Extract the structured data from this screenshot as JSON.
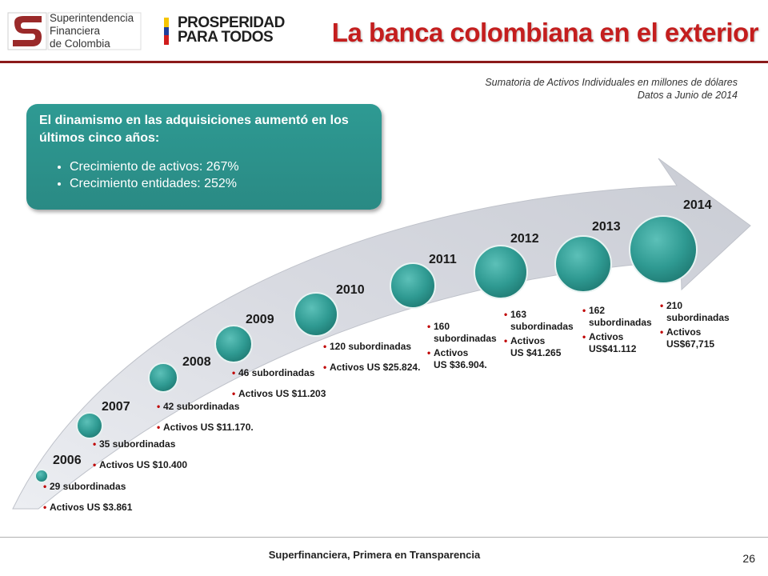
{
  "header": {
    "org_name_lines": [
      "Superintendencia",
      "Financiera",
      "de Colombia"
    ],
    "gov_logo_lines": [
      "PROSPERIDAD",
      "PARA TODOS"
    ],
    "title": "La banca colombiana en el exterior",
    "subtitle_lines": [
      "Sumatoria de Activos Individuales en millones de dólares",
      "Datos a Junio de 2014"
    ]
  },
  "callout": {
    "heading": "El dinamismo en las adquisiciones aumentó en los últimos cinco años:",
    "bullets": [
      "Crecimiento de activos:  267%",
      "Crecimiento entidades: 252%"
    ]
  },
  "timeline": [
    {
      "year": "2006",
      "lines": [
        "29 subordinadas",
        "Activos US $3.861"
      ]
    },
    {
      "year": "2007",
      "lines": [
        "35 subordinadas",
        "Activos US $10.400"
      ]
    },
    {
      "year": "2008",
      "lines": [
        "42 subordinadas",
        "Activos US $11.170."
      ]
    },
    {
      "year": "2009",
      "lines": [
        "46 subordinadas",
        "Activos US $11.203"
      ]
    },
    {
      "year": "2010",
      "lines": [
        "120 subordinadas",
        "Activos US $25.824."
      ]
    },
    {
      "year": "2011",
      "lines": [
        "160 subordinadas",
        "Activos US $36.904."
      ]
    },
    {
      "year": "2012",
      "lines": [
        "163 subordinadas",
        "Activos US $41.265"
      ]
    },
    {
      "year": "2013",
      "lines": [
        "162 subordinadas",
        "Activos US$41.112"
      ]
    },
    {
      "year": "2014",
      "lines": [
        "210 subordinadas",
        "Activos US$67,715"
      ]
    }
  ],
  "footer": {
    "text": "Superfinanciera, Primera en Transparencia",
    "page": "26"
  },
  "colors": {
    "title": "#c41e1e",
    "callout": "#2e9a93",
    "circle": "#2f9a92",
    "arrow": "#d6d8df",
    "bullet_dot": "#c00000"
  }
}
